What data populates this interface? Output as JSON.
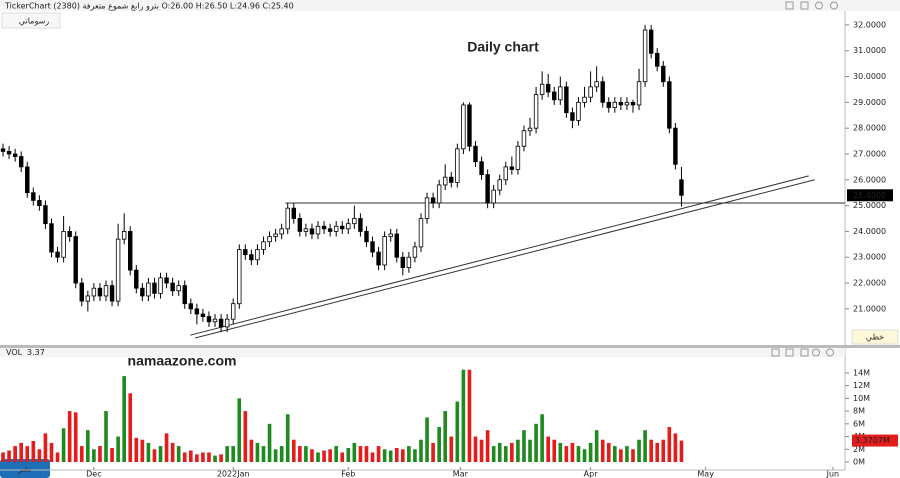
{
  "chart_data": {
    "type": "candlestick",
    "header": "TickerChart (2380) بترو رابغ شموع متعرفة O:26.00 H:26.50 L:24.96 C:25.40",
    "title": "Daily chart",
    "watermark": "namaazone.com",
    "buttons": {
      "drawings": "رسوماتي",
      "line": "خطي",
      "share": "نشر"
    },
    "up_color": "#ffffff",
    "down_color": "#000000",
    "xlim": [
      -0.5,
      139
    ],
    "xticks": [
      {
        "value": 15,
        "label": "Dec"
      },
      {
        "value": 38,
        "label": "2022Jan"
      },
      {
        "value": 57,
        "label": "Feb"
      },
      {
        "value": 75.5,
        "label": "Mar"
      },
      {
        "value": 97,
        "label": "Apr"
      },
      {
        "value": 116,
        "label": "May"
      },
      {
        "value": 137,
        "label": "Jun"
      }
    ],
    "ylim": [
      19.6,
      32.5
    ],
    "yticks": [
      {
        "value": 21,
        "label": "21.0000"
      },
      {
        "value": 22,
        "label": "22.0000"
      },
      {
        "value": 23,
        "label": "23.0000"
      },
      {
        "value": 24,
        "label": "24.0000"
      },
      {
        "value": 25,
        "label": "25.0000"
      },
      {
        "value": 26,
        "label": "26.0000"
      },
      {
        "value": 27,
        "label": "27.0000"
      },
      {
        "value": 28,
        "label": "28.0000"
      },
      {
        "value": 29,
        "label": "29.0000"
      },
      {
        "value": 30,
        "label": "30.0000"
      },
      {
        "value": 31,
        "label": "31.0000"
      },
      {
        "value": 32,
        "label": "32.0000"
      }
    ],
    "last_price_label": "25.4000",
    "hline": {
      "from": 46.6,
      "price": 25.1
    },
    "trendlines": [
      {
        "x": [
          30.9,
          133
        ],
        "y": [
          19.98,
          26.15
        ]
      },
      {
        "x": [
          31.7,
          134
        ],
        "y": [
          19.87,
          26.0
        ]
      }
    ],
    "open": [
      27.2,
      27.1,
      27.0,
      26.9,
      26.5,
      25.5,
      25.2,
      25.0,
      24.3,
      23.2,
      23.0,
      24.0,
      23.8,
      22.0,
      21.3,
      21.5,
      21.8,
      21.5,
      21.9,
      21.3,
      23.7,
      24.0,
      22.5,
      21.8,
      21.5,
      22.0,
      21.6,
      22.2,
      22.0,
      21.7,
      21.9,
      21.2,
      21.0,
      20.8,
      20.7,
      20.5,
      20.6,
      20.3,
      20.6,
      21.2,
      23.3,
      23.1,
      22.9,
      23.3,
      23.6,
      23.8,
      23.9,
      24.1,
      24.9,
      24.5,
      24.0,
      24.1,
      23.9,
      24.2,
      24.1,
      24.0,
      24.2,
      24.1,
      24.3,
      24.5,
      24.0,
      23.6,
      23.2,
      22.7,
      23.8,
      23.9,
      23.0,
      22.6,
      23.0,
      23.4,
      24.5,
      25.3,
      25.1,
      25.8,
      26.1,
      25.9,
      27.2,
      28.9,
      27.3,
      26.7,
      26.2,
      25.1,
      25.6,
      26.0,
      26.5,
      26.4,
      27.3,
      27.9,
      28.0,
      29.3,
      29.7,
      29.4,
      29.1,
      29.6,
      28.6,
      28.3,
      29.0,
      29.2,
      29.6,
      29.8,
      29.0,
      28.8,
      29.0,
      28.9,
      29.0,
      28.9,
      29.8,
      31.8,
      30.9,
      30.4,
      29.8,
      28.0,
      26.0
    ],
    "high": [
      27.4,
      27.3,
      27.2,
      27.1,
      26.7,
      25.7,
      25.4,
      25.2,
      24.5,
      23.4,
      24.6,
      24.2,
      24.0,
      22.2,
      21.7,
      22.0,
      22.0,
      22.1,
      22.1,
      24.3,
      24.7,
      24.2,
      22.7,
      22.0,
      22.2,
      22.2,
      22.4,
      22.4,
      22.2,
      22.1,
      22.1,
      21.4,
      21.2,
      21.0,
      20.9,
      20.8,
      20.8,
      20.8,
      21.4,
      23.5,
      23.5,
      23.3,
      23.5,
      23.8,
      24.0,
      24.1,
      24.3,
      25.1,
      25.1,
      24.7,
      24.3,
      24.3,
      24.4,
      24.4,
      24.3,
      24.4,
      24.4,
      24.5,
      25.0,
      24.7,
      24.2,
      23.8,
      23.4,
      24.0,
      24.1,
      24.1,
      23.2,
      23.2,
      23.6,
      24.7,
      25.5,
      25.5,
      26.0,
      26.6,
      26.3,
      27.4,
      29.0,
      29.0,
      27.5,
      26.9,
      26.4,
      25.8,
      26.2,
      26.7,
      26.9,
      27.5,
      28.1,
      28.4,
      29.6,
      30.2,
      30.1,
      29.6,
      30.0,
      29.8,
      28.8,
      29.2,
      29.6,
      30.2,
      30.4,
      30.0,
      29.2,
      29.2,
      29.2,
      29.2,
      29.1,
      30.3,
      32.0,
      32.0,
      31.1,
      30.6,
      30.0,
      28.2,
      26.5
    ],
    "low": [
      26.9,
      26.8,
      26.7,
      26.3,
      25.3,
      25.0,
      24.8,
      24.1,
      23.0,
      22.8,
      22.8,
      23.6,
      21.8,
      21.1,
      20.9,
      21.3,
      21.3,
      21.3,
      21.1,
      21.1,
      23.5,
      22.3,
      21.6,
      21.3,
      21.3,
      21.4,
      21.4,
      21.8,
      21.5,
      21.5,
      21.0,
      20.8,
      20.4,
      20.5,
      20.3,
      20.3,
      20.1,
      20.1,
      20.4,
      21.0,
      22.9,
      22.7,
      22.7,
      23.1,
      23.4,
      23.6,
      23.7,
      23.9,
      24.3,
      23.8,
      23.8,
      23.7,
      23.7,
      23.9,
      23.8,
      23.8,
      23.9,
      23.9,
      24.1,
      23.8,
      23.4,
      23.0,
      22.5,
      22.5,
      23.6,
      22.8,
      22.3,
      22.4,
      22.8,
      23.2,
      24.3,
      24.9,
      24.9,
      25.6,
      25.7,
      25.7,
      27.0,
      27.1,
      26.5,
      26.0,
      24.9,
      24.9,
      25.4,
      25.8,
      26.2,
      26.2,
      27.1,
      27.7,
      27.8,
      29.1,
      29.2,
      28.9,
      28.9,
      28.4,
      28.0,
      28.1,
      28.8,
      29.0,
      29.4,
      28.8,
      28.6,
      28.6,
      28.7,
      28.7,
      28.6,
      28.7,
      29.6,
      30.7,
      30.2,
      29.6,
      27.8,
      26.4,
      24.96
    ],
    "close": [
      27.1,
      27.0,
      26.9,
      26.5,
      25.5,
      25.2,
      25.0,
      24.3,
      23.2,
      23.0,
      24.0,
      23.8,
      22.0,
      21.3,
      21.5,
      21.8,
      21.5,
      21.9,
      21.3,
      23.7,
      24.0,
      22.5,
      21.8,
      21.5,
      22.0,
      21.6,
      22.2,
      22.0,
      21.7,
      21.9,
      21.2,
      21.0,
      20.8,
      20.7,
      20.5,
      20.6,
      20.3,
      20.6,
      21.2,
      23.3,
      23.1,
      22.9,
      23.3,
      23.6,
      23.8,
      23.9,
      24.1,
      24.9,
      24.5,
      24.0,
      24.1,
      23.9,
      24.2,
      24.1,
      24.0,
      24.2,
      24.1,
      24.3,
      24.5,
      24.0,
      23.6,
      23.2,
      22.7,
      23.8,
      23.9,
      23.0,
      22.6,
      23.0,
      23.4,
      24.5,
      25.3,
      25.1,
      25.8,
      26.1,
      25.9,
      27.2,
      28.9,
      27.3,
      26.7,
      26.2,
      25.1,
      25.6,
      26.0,
      26.5,
      26.4,
      27.3,
      27.9,
      28.0,
      29.3,
      29.7,
      29.4,
      29.1,
      29.6,
      28.6,
      28.3,
      29.0,
      29.2,
      29.6,
      29.8,
      29.0,
      28.8,
      29.0,
      28.9,
      29.0,
      28.9,
      29.8,
      31.8,
      30.9,
      30.4,
      29.8,
      28.0,
      26.6,
      25.4
    ],
    "volume": {
      "label": "VOL",
      "header_value": "3.37",
      "last_label": "3.3707M",
      "up_color": "#1f8a1f",
      "down_color": "#e31c1c",
      "ylim": [
        0,
        16.5
      ],
      "yticks": [
        {
          "value": 0,
          "label": "0M"
        },
        {
          "value": 2,
          "label": "2M"
        },
        {
          "value": 4,
          "label": "4M"
        },
        {
          "value": 6,
          "label": "6M"
        },
        {
          "value": 8,
          "label": "8M"
        },
        {
          "value": 10,
          "label": "10M"
        },
        {
          "value": 12,
          "label": "12M"
        },
        {
          "value": 14,
          "label": "14M"
        }
      ],
      "values": [
        1.5,
        1.8,
        2.5,
        3.0,
        2.5,
        3.3,
        2.0,
        4.5,
        3.0,
        1.5,
        5.3,
        8.0,
        7.8,
        2.5,
        5.0,
        2.0,
        2.5,
        8.0,
        2.2,
        4.0,
        13.5,
        10.8,
        3.8,
        3.5,
        3.0,
        2.0,
        2.5,
        4.5,
        3.0,
        2.5,
        1.5,
        1.8,
        1.2,
        1.5,
        1.5,
        1.0,
        1.2,
        2.5,
        2.5,
        10.0,
        8.0,
        3.5,
        3.0,
        2.5,
        6.0,
        2.0,
        2.5,
        7.5,
        3.5,
        2.5,
        2.5,
        2.0,
        1.5,
        1.8,
        2.0,
        2.5,
        1.5,
        2.2,
        3.0,
        2.5,
        2.5,
        1.5,
        2.5,
        2.0,
        1.8,
        2.2,
        2.0,
        2.5,
        2.0,
        3.5,
        7.0,
        3.0,
        5.5,
        8.0,
        4.0,
        9.5,
        14.5,
        14.5,
        4.0,
        3.5,
        5.0,
        2.5,
        3.0,
        2.5,
        3.0,
        3.5,
        5.0,
        3.5,
        6.0,
        7.5,
        4.0,
        3.5,
        3.0,
        2.5,
        3.0,
        2.5,
        2.0,
        3.0,
        5.0,
        3.5,
        3.0,
        2.5,
        2.0,
        2.5,
        2.0,
        3.5,
        5.0,
        3.5,
        3.0,
        3.5,
        5.5,
        4.5,
        3.37
      ]
    }
  }
}
